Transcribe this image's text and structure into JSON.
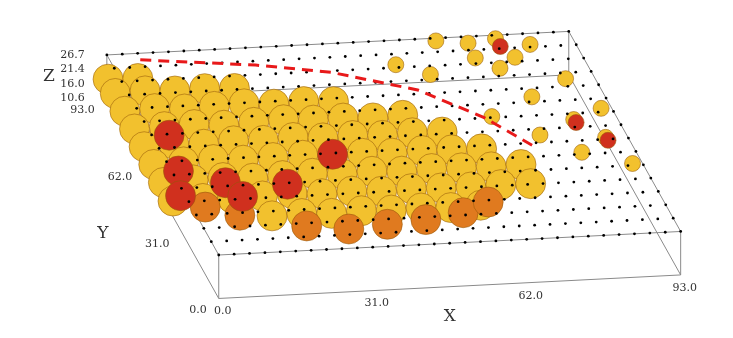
{
  "chart_data": {
    "type": "scatter3d",
    "x_label": "X",
    "y_label": "Y",
    "z_label": "Z",
    "xlim": [
      0,
      93
    ],
    "ylim": [
      0,
      93
    ],
    "zlim": [
      10.6,
      26.7
    ],
    "xticks": [
      {
        "value": 0,
        "label": "0.0"
      },
      {
        "value": 31,
        "label": "31.0"
      },
      {
        "value": 62,
        "label": "62.0"
      },
      {
        "value": 93,
        "label": "93.0"
      }
    ],
    "yticks": [
      {
        "value": 0,
        "label": "0.0"
      },
      {
        "value": 31,
        "label": "31.0"
      },
      {
        "value": 62,
        "label": "62.0"
      },
      {
        "value": 93,
        "label": "93.0"
      }
    ],
    "zticks": [
      {
        "value": 10.6,
        "label": "10.6"
      },
      {
        "value": 16,
        "label": "16.0"
      },
      {
        "value": 21.4,
        "label": "21.4"
      },
      {
        "value": 26.7,
        "label": "26.7"
      }
    ],
    "series": [
      {
        "color": "#f2c12e",
        "marker": "blob",
        "values": [
          [
            0,
            92,
            18.5
          ],
          [
            6,
            92,
            18.2
          ],
          [
            0,
            86,
            18
          ],
          [
            6,
            86,
            18.4
          ],
          [
            12,
            86,
            17.8
          ],
          [
            18,
            86,
            18.1
          ],
          [
            24,
            86,
            17.6
          ],
          [
            0,
            78,
            17.8
          ],
          [
            6,
            78,
            18.2
          ],
          [
            12,
            78,
            17.5
          ],
          [
            18,
            78,
            17.9
          ],
          [
            24,
            78,
            18.3
          ],
          [
            30,
            78,
            17.6
          ],
          [
            36,
            78,
            18
          ],
          [
            42,
            78,
            17.4
          ],
          [
            0,
            70,
            17.6
          ],
          [
            6,
            70,
            17.9
          ],
          [
            12,
            70,
            18.1
          ],
          [
            18,
            70,
            17.3
          ],
          [
            24,
            70,
            17.8
          ],
          [
            30,
            70,
            18.2
          ],
          [
            36,
            70,
            17.5
          ],
          [
            42,
            70,
            17.7
          ],
          [
            48,
            70,
            17.2
          ],
          [
            54,
            70,
            17.6
          ],
          [
            0,
            62,
            17.4
          ],
          [
            6,
            62,
            17.8
          ],
          [
            12,
            62,
            17.2
          ],
          [
            18,
            62,
            17.9
          ],
          [
            24,
            62,
            17.5
          ],
          [
            30,
            62,
            18
          ],
          [
            36,
            62,
            17.3
          ],
          [
            42,
            62,
            17.6
          ],
          [
            48,
            62,
            17.1
          ],
          [
            54,
            62,
            17.5
          ],
          [
            60,
            62,
            17.2
          ],
          [
            0,
            54,
            17.2
          ],
          [
            6,
            54,
            17.6
          ],
          [
            12,
            54,
            17.9
          ],
          [
            18,
            54,
            17.1
          ],
          [
            24,
            54,
            17.5
          ],
          [
            30,
            54,
            17.8
          ],
          [
            36,
            54,
            17
          ],
          [
            42,
            54,
            17.4
          ],
          [
            48,
            54,
            16.9
          ],
          [
            54,
            54,
            17.3
          ],
          [
            60,
            54,
            17
          ],
          [
            66,
            54,
            16.8
          ],
          [
            0,
            46,
            16.9
          ],
          [
            6,
            46,
            17.3
          ],
          [
            12,
            46,
            17.6
          ],
          [
            18,
            46,
            16.8
          ],
          [
            24,
            46,
            17.2
          ],
          [
            30,
            46,
            17.5
          ],
          [
            36,
            46,
            16.7
          ],
          [
            42,
            46,
            17.1
          ],
          [
            48,
            46,
            16.6
          ],
          [
            54,
            46,
            17
          ],
          [
            60,
            46,
            16.7
          ],
          [
            66,
            46,
            16.5
          ],
          [
            72,
            46,
            16.8
          ],
          [
            0,
            38,
            16.4
          ],
          [
            6,
            38,
            16.8
          ],
          [
            12,
            38,
            16.2
          ],
          [
            18,
            38,
            16.6
          ],
          [
            24,
            38,
            16.9
          ],
          [
            30,
            38,
            16.3
          ],
          [
            36,
            38,
            16.7
          ],
          [
            42,
            38,
            16.1
          ],
          [
            48,
            38,
            16.5
          ],
          [
            54,
            38,
            16.2
          ],
          [
            60,
            38,
            16
          ],
          [
            66,
            38,
            16.3
          ],
          [
            72,
            38,
            16.1
          ],
          [
            18,
            30,
            15.6
          ],
          [
            24,
            30,
            15.9
          ],
          [
            30,
            30,
            15.4
          ],
          [
            36,
            30,
            15.8
          ],
          [
            42,
            30,
            15.5
          ],
          [
            48,
            30,
            15.7
          ],
          [
            54,
            30,
            15.3
          ],
          [
            60,
            30,
            15.6
          ]
        ]
      },
      {
        "color": "#e07a1f",
        "marker": "blob",
        "values": [
          [
            6,
            36,
            15.2
          ],
          [
            12,
            32,
            14.8
          ],
          [
            24,
            26,
            14.5
          ],
          [
            32,
            24,
            14.2
          ],
          [
            40,
            25,
            14.4
          ],
          [
            48,
            26,
            14.6
          ],
          [
            56,
            28,
            14.8
          ],
          [
            62,
            32,
            15
          ]
        ]
      },
      {
        "color": "#d0301e",
        "marker": "blob",
        "values": [
          [
            6,
            66,
            17.9
          ],
          [
            4,
            50,
            17.6
          ],
          [
            36,
            54,
            17.6
          ],
          [
            12,
            44,
            17.3
          ],
          [
            24,
            42,
            17.2
          ],
          [
            2,
            40,
            16.6
          ],
          [
            14,
            38,
            16.8
          ]
        ]
      },
      {
        "color": "#f2c12e",
        "marker": "circle",
        "values": [
          [
            66,
            92,
            26.5
          ],
          [
            72,
            90,
            26.7
          ],
          [
            78,
            92,
            26.2
          ],
          [
            84,
            88,
            26.7
          ],
          [
            72,
            84,
            26
          ],
          [
            80,
            84,
            25.5
          ],
          [
            56,
            84,
            25
          ],
          [
            62,
            80,
            24
          ],
          [
            88,
            75,
            24
          ],
          [
            76,
            80,
            25
          ],
          [
            80,
            70,
            22
          ],
          [
            92,
            62,
            23
          ],
          [
            70,
            62,
            22
          ],
          [
            86,
            60,
            21
          ],
          [
            78,
            55,
            20
          ],
          [
            90,
            50,
            22
          ],
          [
            84,
            45,
            21
          ],
          [
            93,
            40,
            20
          ]
        ]
      },
      {
        "color": "#d0301e",
        "marker": "circle",
        "values": [
          [
            78,
            88,
            26.5
          ],
          [
            86,
            58,
            21.5
          ],
          [
            90,
            48,
            22.5
          ]
        ]
      }
    ],
    "grid_points": {
      "color": "#000000",
      "marker": "dot",
      "x": [
        0,
        3.1,
        6.2,
        9.3,
        12.4,
        15.5,
        18.6,
        21.7,
        24.8,
        27.9,
        31,
        34.1,
        37.2,
        40.3,
        43.4,
        46.5,
        49.6,
        52.7,
        55.8,
        58.9,
        62,
        65.1,
        68.2,
        71.3,
        74.4,
        77.5,
        80.6,
        83.7,
        86.8,
        89.9,
        93
      ],
      "y": [
        0,
        6.2,
        12.4,
        18.6,
        24.8,
        31,
        37.2,
        43.4,
        49.6,
        55.8,
        62,
        68.2,
        74.4,
        80.6,
        86.8,
        93
      ],
      "z": 26.7
    },
    "annotations": [
      {
        "type": "line",
        "line_style": "dashed",
        "color": "#e8191a",
        "values": [
          [
            6,
            90,
            26.7
          ],
          [
            28,
            85,
            26.7
          ],
          [
            42,
            80,
            26.7
          ],
          [
            57,
            70,
            26.7
          ],
          [
            67,
            56,
            26.7
          ],
          [
            74,
            41,
            26.7
          ]
        ]
      }
    ]
  }
}
